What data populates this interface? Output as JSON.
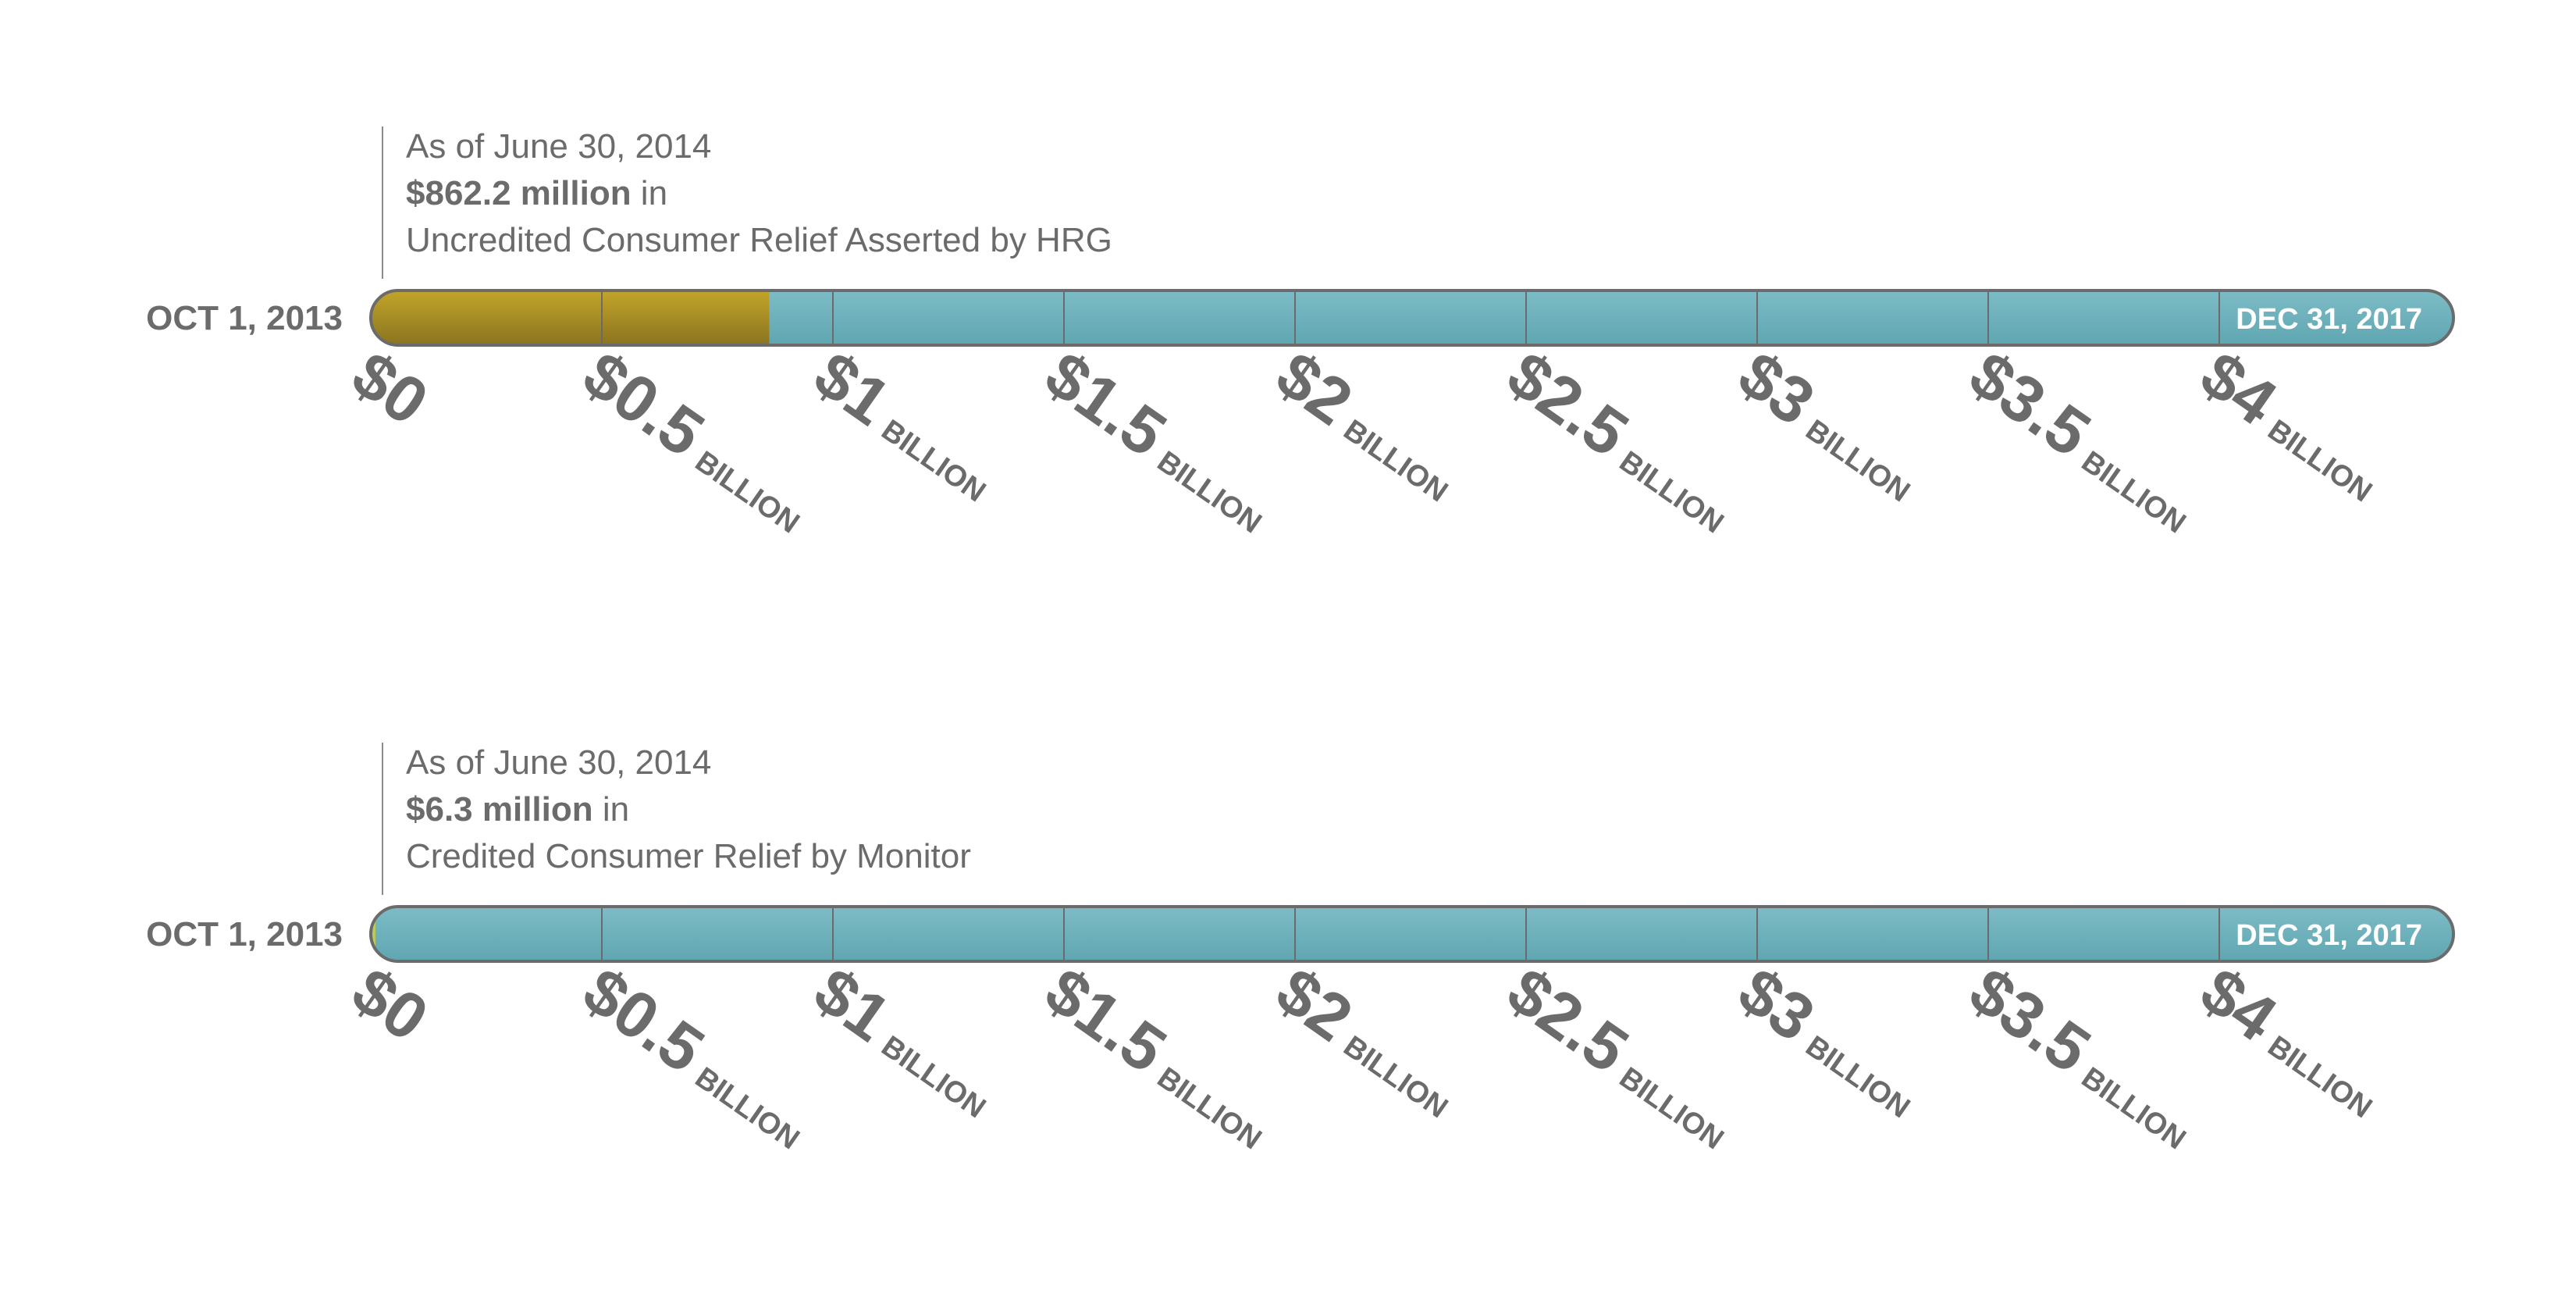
{
  "colors": {
    "bar_fill": "#7dbcc6",
    "bar_fill_dark": "#5fa6b1",
    "bar_outline": "#6b6b6b",
    "progress_fill": "#c2a52a",
    "progress_fill_dark": "#8a7420",
    "progress_fill_2": "#b8cc5a",
    "text": "#6b6b6b",
    "end_label": "#ffffff"
  },
  "chart_data": [
    {
      "type": "bar",
      "start_label": "OCT 1, 2013",
      "end_label": "DEC 31, 2017",
      "note": {
        "line1": "As of June 30, 2014",
        "amount": "$862.2 million",
        "amount_suffix": " in",
        "line3": "Uncredited Consumer Relief Asserted by HRG"
      },
      "value_billion": 0.8622,
      "ticks": [
        {
          "value": 0,
          "main": "$0",
          "unit": ""
        },
        {
          "value": 0.5,
          "main": "$0.5",
          "unit": "BILLION"
        },
        {
          "value": 1,
          "main": "$1",
          "unit": "BILLION"
        },
        {
          "value": 1.5,
          "main": "$1.5",
          "unit": "BILLION"
        },
        {
          "value": 2,
          "main": "$2",
          "unit": "BILLION"
        },
        {
          "value": 2.5,
          "main": "$2.5",
          "unit": "BILLION"
        },
        {
          "value": 3,
          "main": "$3",
          "unit": "BILLION"
        },
        {
          "value": 3.5,
          "main": "$3.5",
          "unit": "BILLION"
        },
        {
          "value": 4,
          "main": "$4",
          "unit": "BILLION"
        }
      ],
      "xlim": [
        0,
        4.5
      ]
    },
    {
      "type": "bar",
      "start_label": "OCT 1, 2013",
      "end_label": "DEC 31, 2017",
      "note": {
        "line1": "As of June 30, 2014",
        "amount": "$6.3 million",
        "amount_suffix": " in",
        "line3": "Credited Consumer Relief by Monitor"
      },
      "value_billion": 0.0063,
      "ticks": [
        {
          "value": 0,
          "main": "$0",
          "unit": ""
        },
        {
          "value": 0.5,
          "main": "$0.5",
          "unit": "BILLION"
        },
        {
          "value": 1,
          "main": "$1",
          "unit": "BILLION"
        },
        {
          "value": 1.5,
          "main": "$1.5",
          "unit": "BILLION"
        },
        {
          "value": 2,
          "main": "$2",
          "unit": "BILLION"
        },
        {
          "value": 2.5,
          "main": "$2.5",
          "unit": "BILLION"
        },
        {
          "value": 3,
          "main": "$3",
          "unit": "BILLION"
        },
        {
          "value": 3.5,
          "main": "$3.5",
          "unit": "BILLION"
        },
        {
          "value": 4,
          "main": "$4",
          "unit": "BILLION"
        }
      ],
      "xlim": [
        0,
        4.5
      ]
    }
  ]
}
